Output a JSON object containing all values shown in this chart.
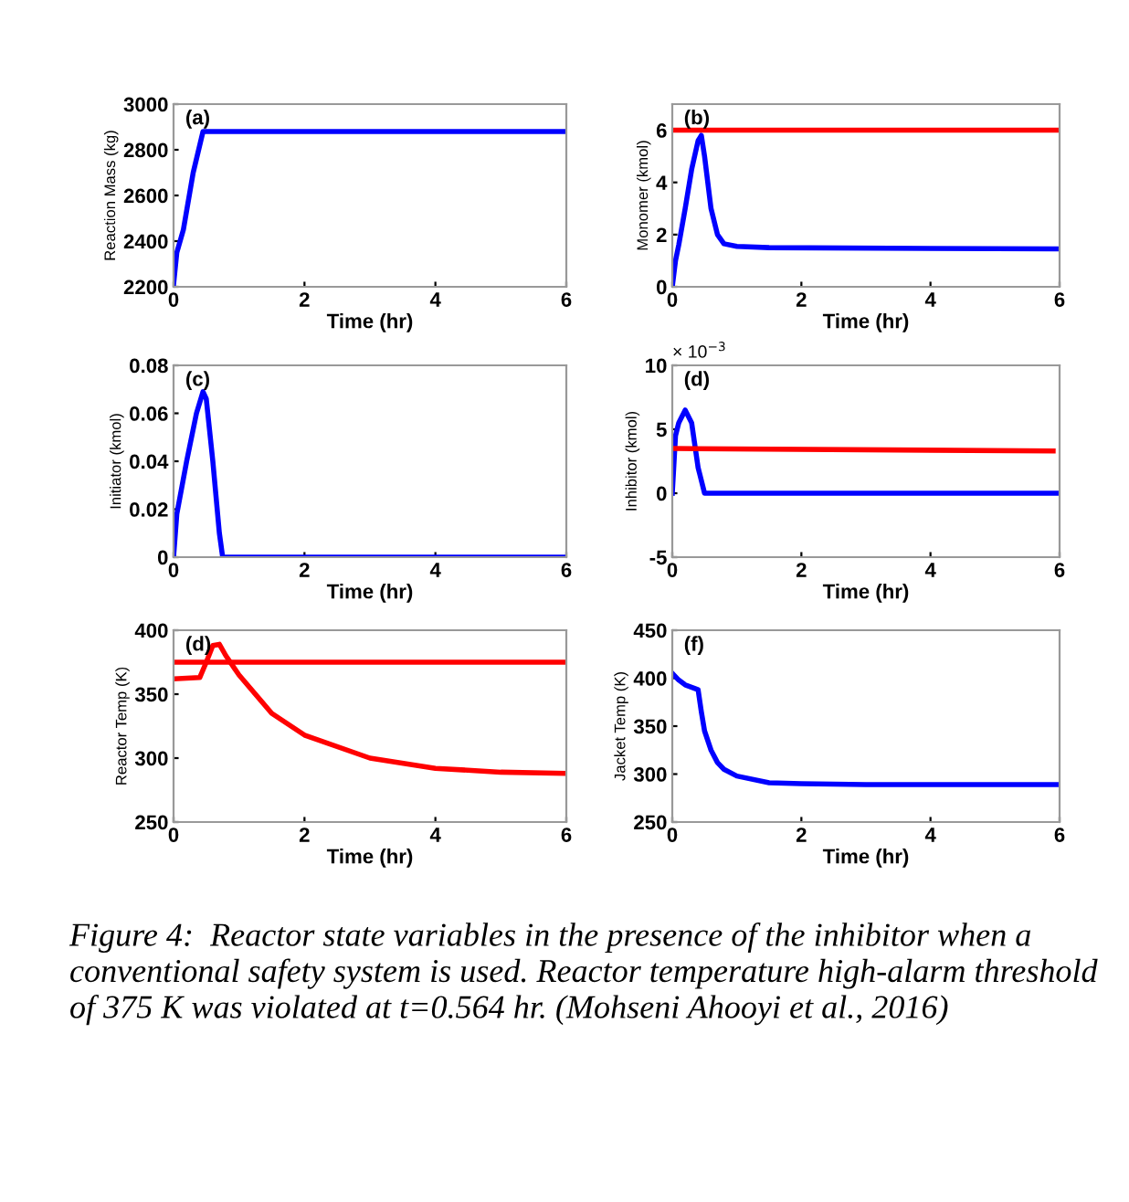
{
  "chart_data": [
    {
      "type": "line",
      "xlabel": "Time (hr)",
      "ylabel": "Reaction Mass (kg)",
      "annotations": [
        "(a)"
      ],
      "xlim": [
        0,
        6
      ],
      "xticks": [
        0,
        2,
        4,
        6
      ],
      "ylim": [
        2200,
        3000
      ],
      "yticks": [
        2200,
        2400,
        2600,
        2800,
        3000
      ],
      "grid": false,
      "series": [
        {
          "color": "#0000ff",
          "x": [
            0,
            0.05,
            0.15,
            0.3,
            0.45,
            6
          ],
          "values": [
            2210,
            2350,
            2450,
            2700,
            2880,
            2880
          ]
        }
      ]
    },
    {
      "type": "line",
      "xlabel": "Time (hr)",
      "ylabel": "Monomer (kmol)",
      "annotations": [
        "(b)"
      ],
      "xlim": [
        0,
        6
      ],
      "xticks": [
        0,
        2,
        4,
        6
      ],
      "ylim": [
        0,
        7
      ],
      "yticks": [
        0,
        2,
        4,
        6
      ],
      "grid": false,
      "ref_lines": [
        {
          "axis": "y",
          "value": 6,
          "color": "#ff0000"
        }
      ],
      "series": [
        {
          "color": "#0000ff",
          "x": [
            0,
            0.05,
            0.1,
            0.2,
            0.3,
            0.4,
            0.45,
            0.5,
            0.6,
            0.7,
            0.8,
            1.0,
            1.5,
            6
          ],
          "values": [
            0,
            1,
            1.6,
            3,
            4.5,
            5.6,
            5.8,
            5.0,
            3,
            2,
            1.65,
            1.55,
            1.5,
            1.45
          ]
        }
      ]
    },
    {
      "type": "line",
      "xlabel": "Time (hr)",
      "ylabel": "Initiator (kmol)",
      "annotations": [
        "(c)"
      ],
      "xlim": [
        0,
        6
      ],
      "xticks": [
        0,
        2,
        4,
        6
      ],
      "ylim": [
        0,
        0.08
      ],
      "yticks": [
        0,
        0.02,
        0.04,
        0.06,
        0.08
      ],
      "grid": false,
      "series": [
        {
          "color": "#0000ff",
          "x": [
            0,
            0.05,
            0.2,
            0.35,
            0.45,
            0.5,
            0.6,
            0.7,
            0.75,
            6
          ],
          "values": [
            0,
            0.018,
            0.04,
            0.06,
            0.069,
            0.066,
            0.04,
            0.01,
            0,
            0
          ]
        }
      ]
    },
    {
      "type": "line",
      "xlabel": "Time (hr)",
      "ylabel": "Inhibitor (kmol)",
      "annotations": [
        "(d)",
        "× 10$^{−3}$"
      ],
      "xlim": [
        0,
        6
      ],
      "xticks": [
        0,
        2,
        4,
        6
      ],
      "ylim": [
        -5,
        10
      ],
      "yticks": [
        -5,
        0,
        5,
        10
      ],
      "grid": false,
      "series": [
        {
          "color": "#0000ff",
          "x": [
            0,
            0.05,
            0.1,
            0.2,
            0.3,
            0.4,
            0.5,
            6
          ],
          "values": [
            0,
            4.5,
            5.5,
            6.5,
            5.5,
            2,
            0,
            0
          ]
        },
        {
          "color": "#ff0000",
          "x": [
            0,
            5.9
          ],
          "values": [
            3.5,
            3.3
          ]
        }
      ]
    },
    {
      "type": "line",
      "xlabel": "Time (hr)",
      "ylabel": "Reactor Temp (K)",
      "annotations": [
        "(d)"
      ],
      "xlim": [
        0,
        6
      ],
      "xticks": [
        0,
        2,
        4,
        6
      ],
      "ylim": [
        250,
        400
      ],
      "yticks": [
        250,
        300,
        350,
        400
      ],
      "grid": false,
      "ref_lines": [
        {
          "axis": "y",
          "value": 375,
          "color": "#ff0000"
        }
      ],
      "series": [
        {
          "color": "#ff0000",
          "x": [
            0,
            0.4,
            0.5,
            0.6,
            0.7,
            0.8,
            1.0,
            1.5,
            2,
            3,
            4,
            5,
            6
          ],
          "values": [
            362,
            363,
            375,
            388,
            389,
            380,
            365,
            335,
            318,
            300,
            292,
            289,
            288
          ]
        }
      ]
    },
    {
      "type": "line",
      "xlabel": "Time (hr)",
      "ylabel": "Jacket Temp (K)",
      "annotations": [
        "(f)",
        "Figure 4:  Reactor state variables in the presence of the inhibitor when a conventional safety system is used. Reactor temperature high-alarm threshold of 375 K was violated at t=0.564 hr. (Mohseni Ahooyi et al., 2016)"
      ],
      "xlim": [
        0,
        6
      ],
      "xticks": [
        0,
        2,
        4,
        6
      ],
      "ylim": [
        250,
        450
      ],
      "yticks": [
        250,
        300,
        350,
        400,
        450
      ],
      "grid": false,
      "series": [
        {
          "color": "#0000ff",
          "x": [
            0,
            0.1,
            0.2,
            0.4,
            0.45,
            0.5,
            0.6,
            0.7,
            0.8,
            1.0,
            1.5,
            2,
            3,
            6
          ],
          "values": [
            405,
            398,
            393,
            388,
            365,
            345,
            325,
            312,
            305,
            298,
            291,
            290,
            289,
            289
          ]
        }
      ]
    }
  ]
}
